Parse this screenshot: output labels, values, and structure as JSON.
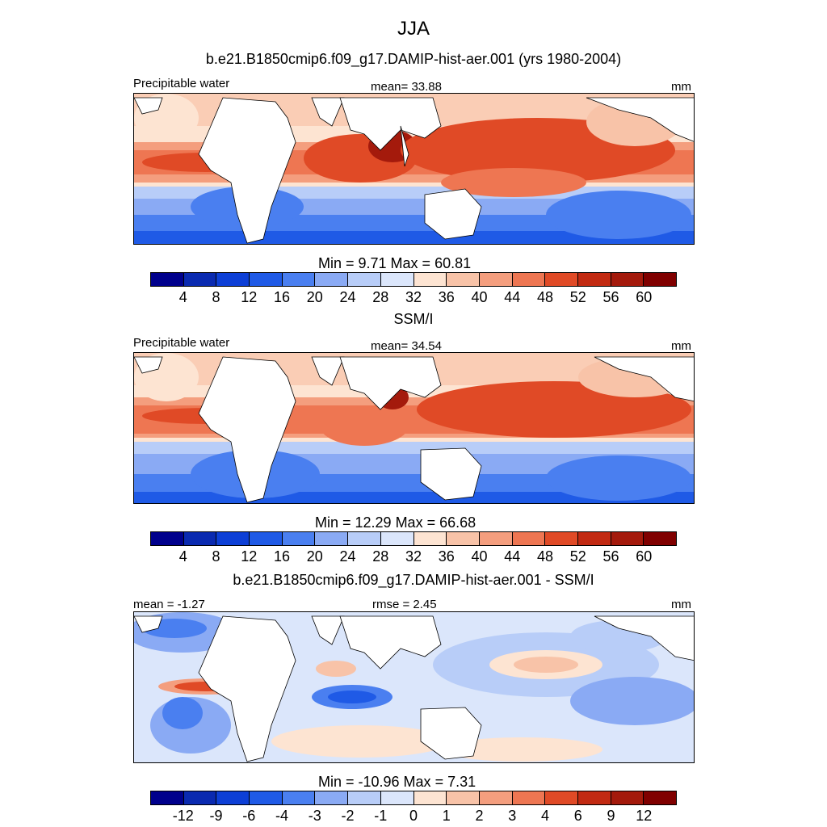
{
  "title": "JJA",
  "panel1": {
    "heading": "b.e21.B1850cmip6.f09_g17.DAMIP-hist-aer.001 (yrs 1980-2004)",
    "left": "Precipitable water",
    "center": "mean=  33.88",
    "right": "mm",
    "minmax": "Min =   9.71 Max =  60.81"
  },
  "panel2": {
    "heading": "SSM/I",
    "left": "Precipitable water",
    "center": "mean=  34.54",
    "right": "mm",
    "minmax": "Min =  12.29 Max =  66.68"
  },
  "panel3": {
    "heading": "b.e21.B1850cmip6.f09_g17.DAMIP-hist-aer.001 - SSM/I",
    "left": "mean =  -1.27",
    "center": "rmse =   2.45",
    "right": "mm",
    "minmax": "Min = -10.96 Max =   7.31"
  },
  "colorbar_abs": {
    "ticks": [
      "4",
      "8",
      "12",
      "16",
      "20",
      "24",
      "28",
      "32",
      "36",
      "40",
      "44",
      "48",
      "52",
      "56",
      "60"
    ],
    "colors": [
      "#00008c",
      "#0a2ab0",
      "#0d3fd6",
      "#1f5ae6",
      "#4a7ff0",
      "#8aaaf4",
      "#b8cdf8",
      "#dbe6fb",
      "#fde4d2",
      "#f8c3a8",
      "#f49e7e",
      "#ee7652",
      "#e04a26",
      "#c22a12",
      "#a41a0c",
      "#800000"
    ]
  },
  "colorbar_diff": {
    "ticks": [
      "-12",
      "-9",
      "-6",
      "-4",
      "-3",
      "-2",
      "-1",
      "0",
      "1",
      "2",
      "3",
      "4",
      "6",
      "9",
      "12"
    ],
    "colors": [
      "#00008c",
      "#0a2ab0",
      "#0d3fd6",
      "#1f5ae6",
      "#4a7ff0",
      "#8aaaf4",
      "#b8cdf8",
      "#dbe6fb",
      "#fde4d2",
      "#f8c3a8",
      "#f49e7e",
      "#ee7652",
      "#e04a26",
      "#c22a12",
      "#a41a0c",
      "#800000"
    ]
  }
}
